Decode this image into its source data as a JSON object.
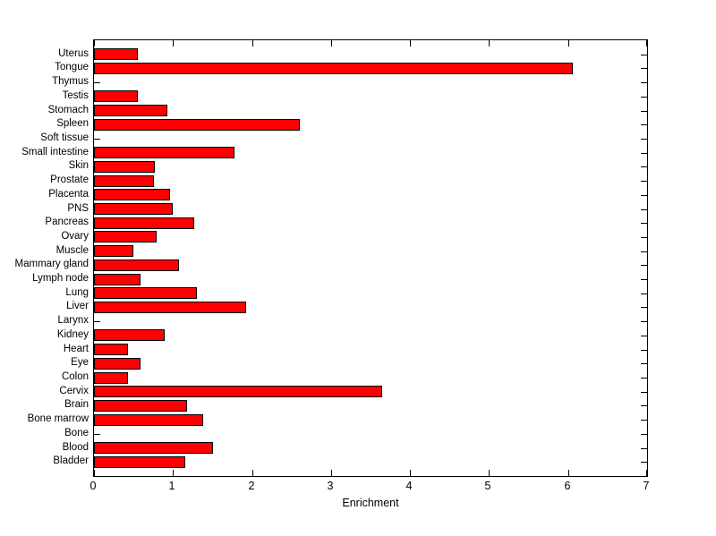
{
  "chart_data": {
    "type": "bar",
    "orientation": "horizontal",
    "title": "",
    "xlabel": "Enrichment",
    "xlim": [
      0,
      7
    ],
    "xticks": [
      0,
      1,
      2,
      3,
      4,
      5,
      6,
      7
    ],
    "grid": false,
    "legend": false,
    "axis_style": "box-with-inward-ticks",
    "categories": [
      "Uterus",
      "Tongue",
      "Thymus",
      "Testis",
      "Stomach",
      "Spleen",
      "Soft tissue",
      "Small intestine",
      "Skin",
      "Prostate",
      "Placenta",
      "PNS",
      "Pancreas",
      "Ovary",
      "Muscle",
      "Mammary gland",
      "Lymph node",
      "Lung",
      "Liver",
      "Larynx",
      "Kidney",
      "Heart",
      "Eye",
      "Colon",
      "Cervix",
      "Brain",
      "Bone marrow",
      "Bone",
      "Blood",
      "Bladder"
    ],
    "values": [
      0.55,
      6.06,
      0,
      0.55,
      0.93,
      2.6,
      0,
      1.78,
      0.77,
      0.76,
      0.96,
      1.0,
      1.27,
      0.79,
      0.5,
      1.08,
      0.59,
      1.3,
      1.92,
      0,
      0.9,
      0.43,
      0.59,
      0.43,
      3.65,
      1.18,
      1.38,
      0,
      1.51,
      1.15
    ],
    "colors": {
      "bar_fill": "#ff0000",
      "bar_edge": "#000000",
      "axis": "#000000",
      "background": "#ffffff",
      "text": "#000000"
    }
  }
}
